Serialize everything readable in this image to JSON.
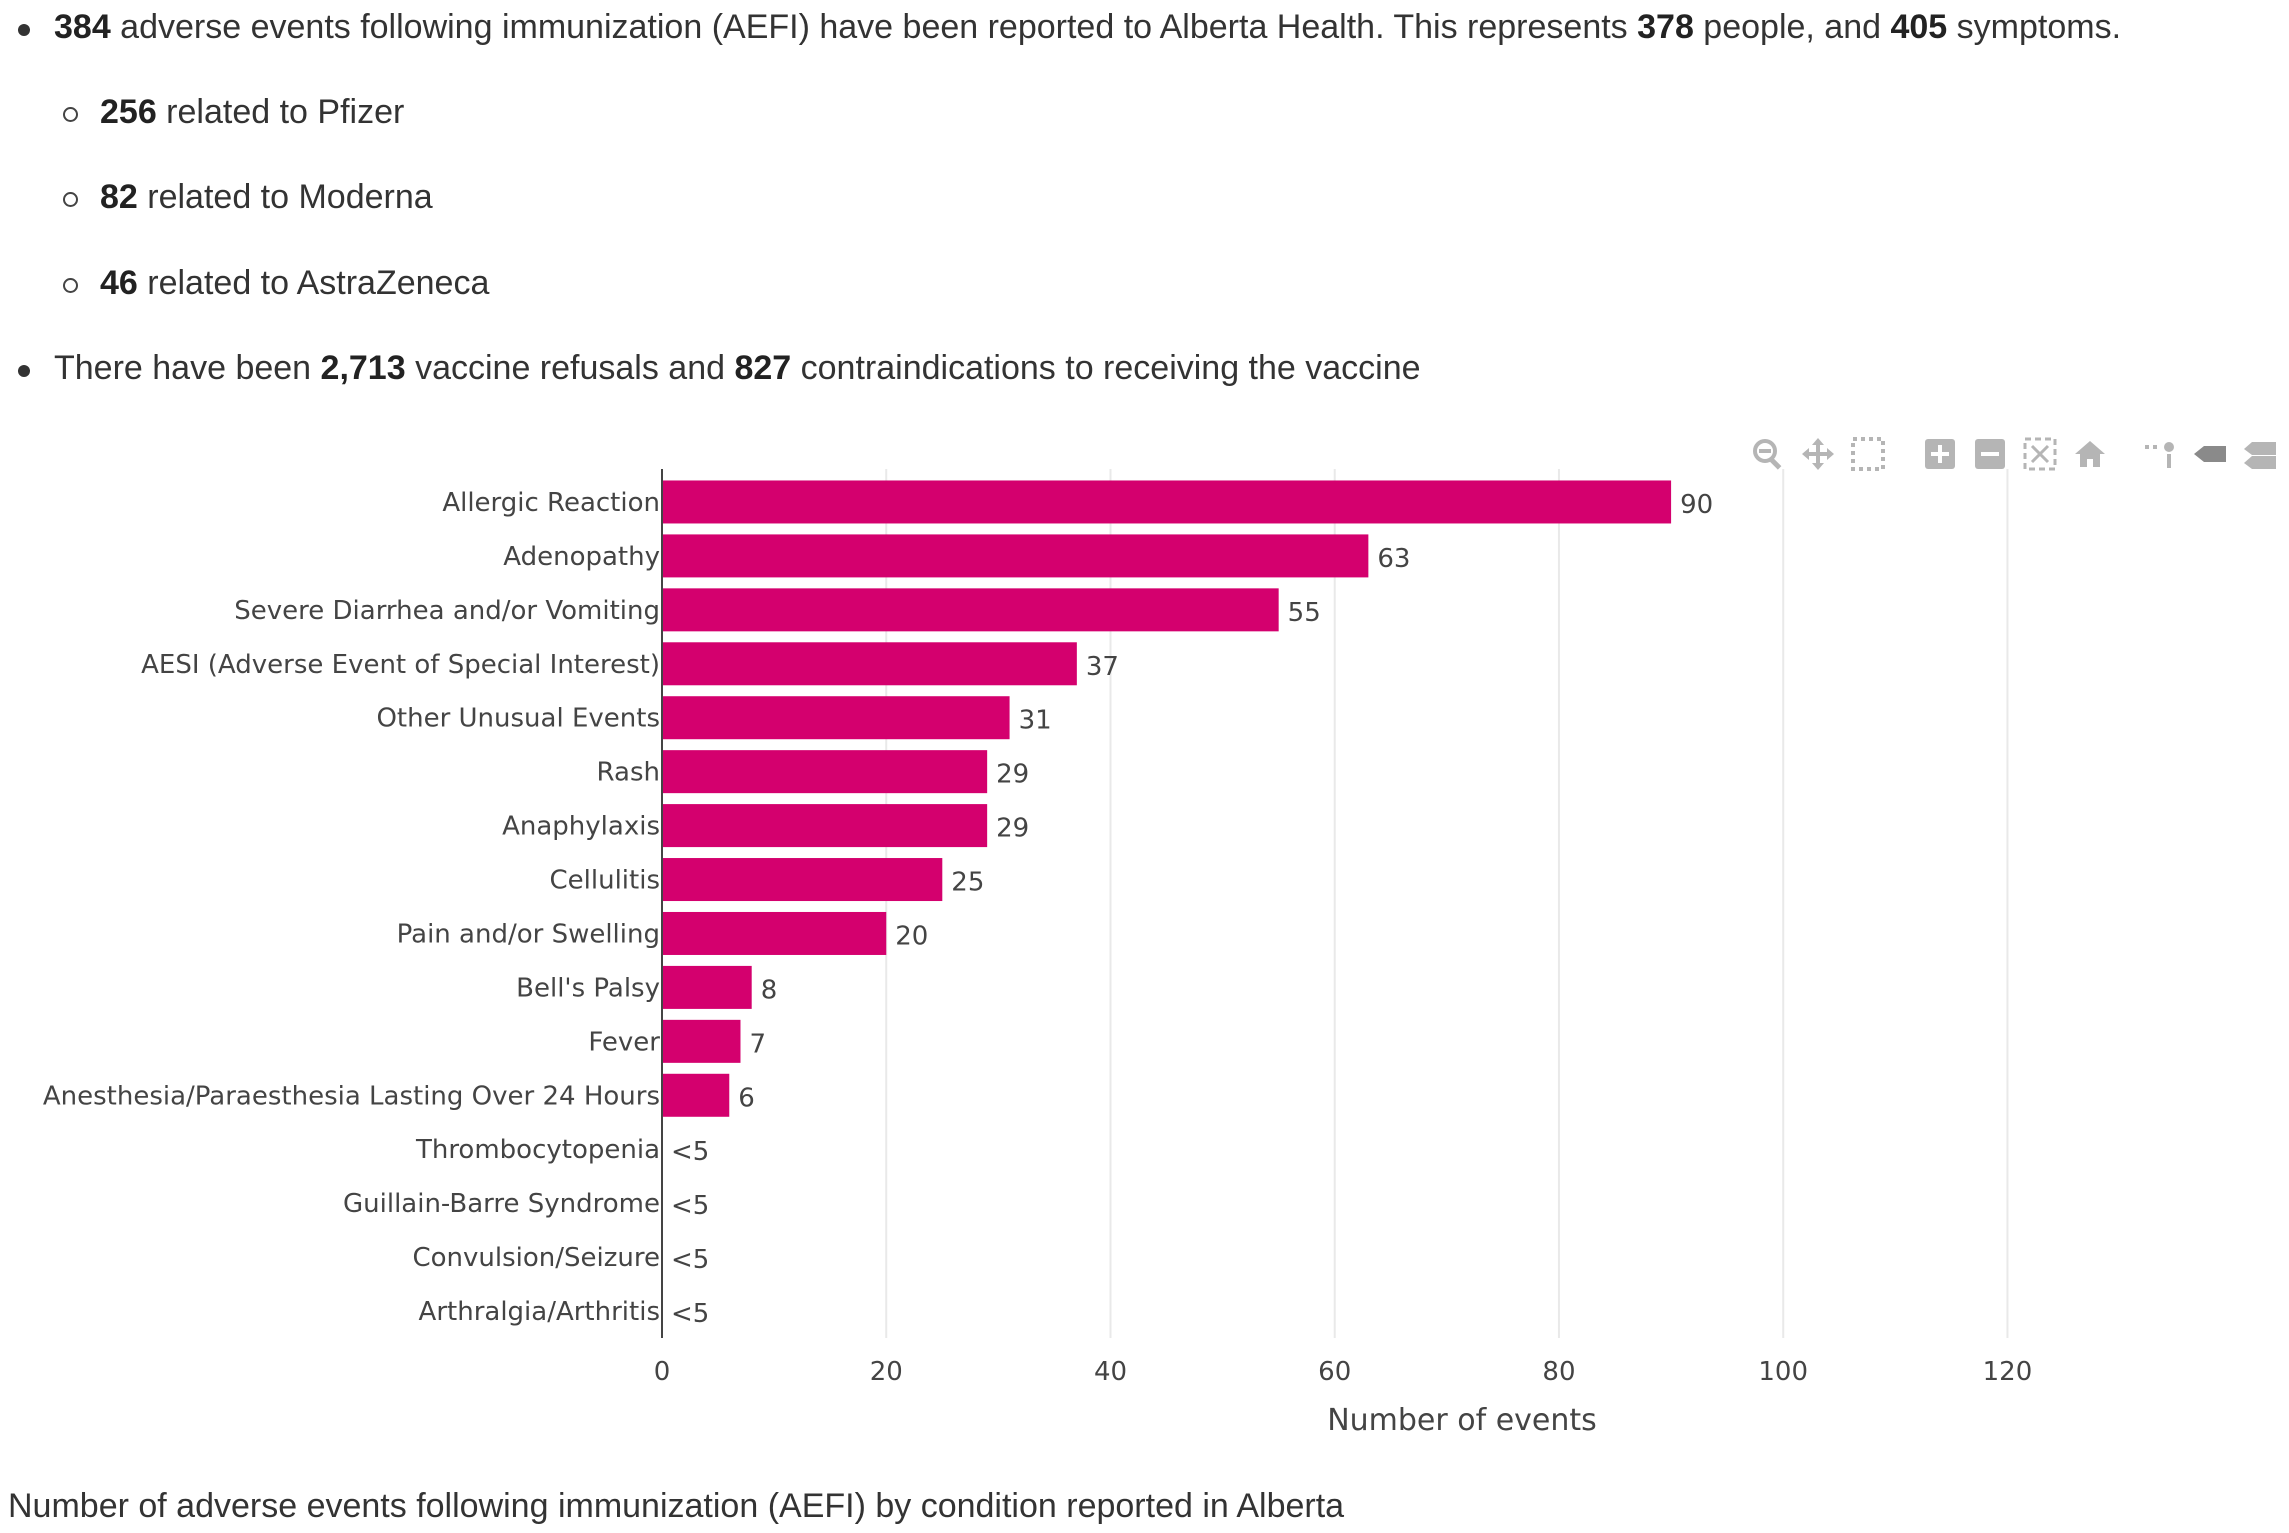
{
  "summary": {
    "line1": {
      "n1": "384",
      "t1": " adverse events following immunization (AEFI) have been reported to Alberta Health. This represents ",
      "n2": "378",
      "t2": " people, and ",
      "n3": "405",
      "t3": " symptoms."
    },
    "vaccines": [
      {
        "n": "256",
        "t": " related to Pfizer"
      },
      {
        "n": "82",
        "t": " related to Moderna"
      },
      {
        "n": "46",
        "t": " related to AstraZeneca"
      }
    ],
    "line2": {
      "t1": "There have been ",
      "n1": "2,713",
      "t2": " vaccine refusals and ",
      "n2": "827",
      "t3": " contraindications to receiving the vaccine"
    }
  },
  "modebar": {
    "icons": [
      "zoom-icon",
      "pan-icon",
      "box-select-icon",
      "zoom-in-icon",
      "zoom-out-icon",
      "autoscale-icon",
      "reset-axes-icon",
      "spike-lines-icon",
      "hover-closest-icon",
      "hover-compare-icon"
    ]
  },
  "chart_data": {
    "type": "bar",
    "orientation": "horizontal",
    "categories": [
      "Allergic Reaction",
      "Adenopathy",
      "Severe Diarrhea and/or Vomiting",
      "AESI (Adverse Event of Special Interest)",
      "Other Unusual Events",
      "Rash",
      "Anaphylaxis",
      "Cellulitis",
      "Pain and/or Swelling",
      "Bell's Palsy",
      "Fever",
      "Anesthesia/Paraesthesia Lasting Over 24 Hours",
      "Thrombocytopenia",
      "Guillain-Barre Syndrome",
      "Convulsion/Seizure",
      "Arthralgia/Arthritis"
    ],
    "values": [
      90,
      63,
      55,
      37,
      31,
      29,
      29,
      25,
      20,
      8,
      7,
      6,
      null,
      null,
      null,
      null
    ],
    "labels": [
      "90",
      "63",
      "55",
      "37",
      "31",
      "29",
      "29",
      "25",
      "20",
      "8",
      "7",
      "6",
      "<5",
      "<5",
      "<5",
      "<5"
    ],
    "xlabel": "Number of events",
    "xlim": [
      0,
      132
    ],
    "xticks": [
      0,
      20,
      40,
      60,
      80,
      100,
      120
    ],
    "grid": true,
    "bar_color": "#d4006e",
    "caption": "Number of adverse events following immunization (AEFI) by condition reported in Alberta"
  }
}
